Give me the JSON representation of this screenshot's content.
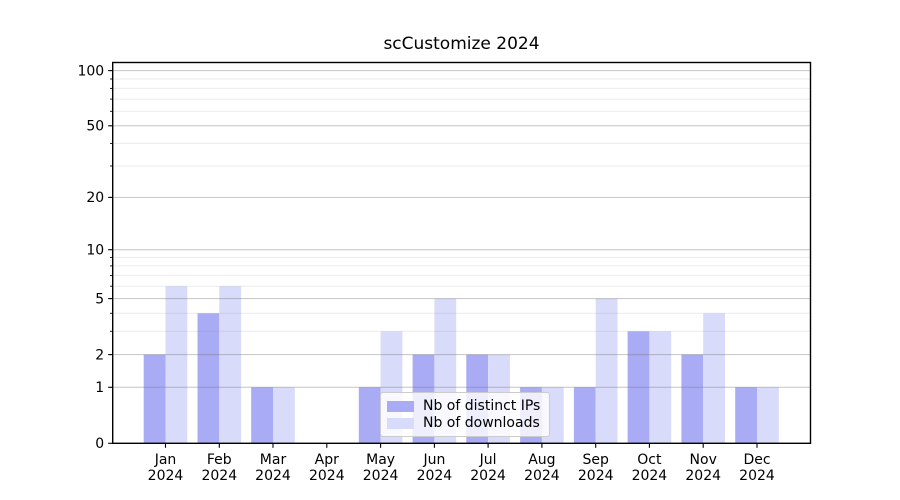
{
  "chart_data": {
    "type": "bar",
    "title": "scCustomize 2024",
    "categories": [
      "Jan",
      "Feb",
      "Mar",
      "Apr",
      "May",
      "Jun",
      "Jul",
      "Aug",
      "Sep",
      "Oct",
      "Nov",
      "Dec"
    ],
    "category_year": "2024",
    "series": [
      {
        "name": "Nb of distinct IPs",
        "color": "#a9abf5",
        "values": [
          2,
          4,
          1,
          0,
          1,
          2,
          2,
          1,
          1,
          3,
          2,
          1
        ]
      },
      {
        "name": "Nb of downloads",
        "color": "#d9dbfa",
        "values": [
          6,
          6,
          1,
          0,
          3,
          5,
          2,
          1,
          5,
          3,
          4,
          1
        ]
      }
    ],
    "xlabel": "",
    "ylabel": "",
    "yscale": "log1p",
    "ylim": [
      0,
      110
    ],
    "y_major_ticks": [
      0,
      1,
      2,
      5,
      10,
      20,
      50,
      100
    ],
    "y_minor_ticks": [
      3,
      4,
      6,
      7,
      8,
      9,
      30,
      40,
      60,
      70,
      80,
      90
    ],
    "grid": true,
    "legend_position": "inside lower-center",
    "frame_color": "#000000",
    "major_grid_color": "rgba(115,115,115,0.42)",
    "minor_grid_color": "rgba(130,130,130,0.16)"
  }
}
